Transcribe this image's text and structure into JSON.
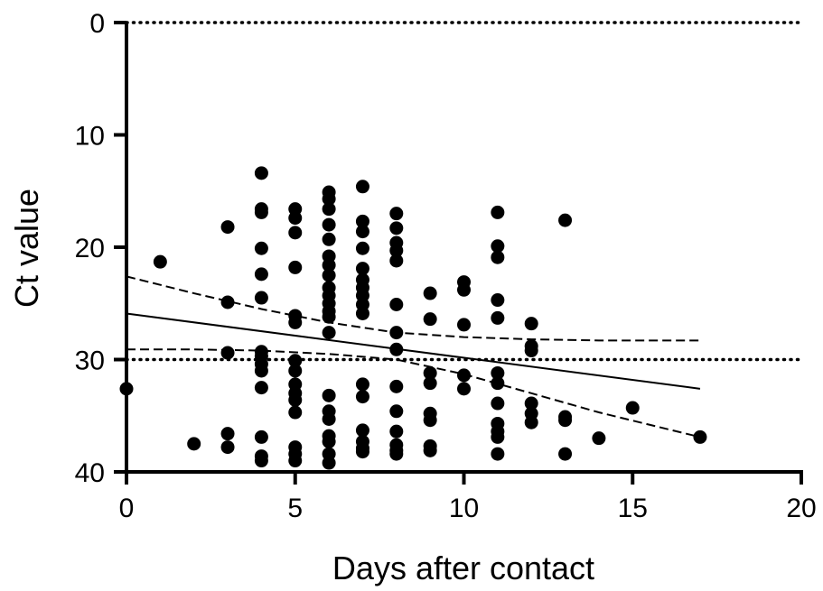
{
  "chart_data": {
    "type": "scatter",
    "title": "",
    "xlabel": "Days after contact",
    "ylabel": "Ct value",
    "xlim": [
      0,
      20
    ],
    "ylim": [
      0,
      40
    ],
    "y_axis_inverted": true,
    "grid": false,
    "legend": "none",
    "x_ticks": [
      0,
      5,
      10,
      15,
      20
    ],
    "y_ticks": [
      0,
      10,
      20,
      30,
      40
    ],
    "x_tick_labels": [
      "0",
      "5",
      "10",
      "15",
      "20"
    ],
    "y_tick_labels": [
      "0",
      "10",
      "20",
      "30",
      "40"
    ],
    "marker_color": "#000000",
    "reference_lines": [
      {
        "axis": "y",
        "value": 0,
        "style": "dotted"
      },
      {
        "axis": "y",
        "value": 30,
        "style": "dotted"
      }
    ],
    "regression_line": {
      "style": "solid",
      "x": [
        0,
        17
      ],
      "y": [
        25.9,
        32.6
      ]
    },
    "confidence_band": {
      "style": "dashed",
      "upper": {
        "x": [
          0,
          2,
          4,
          6,
          8,
          10,
          12,
          14,
          17
        ],
        "y": [
          22.6,
          24.1,
          25.5,
          26.7,
          27.6,
          28.0,
          28.2,
          28.3,
          28.3
        ]
      },
      "lower": {
        "x": [
          0,
          2,
          4,
          6,
          8,
          10,
          12,
          14,
          17
        ],
        "y": [
          29.1,
          29.1,
          29.2,
          29.5,
          30.0,
          31.3,
          33.0,
          34.7,
          36.9
        ]
      }
    },
    "series": [
      {
        "points": [
          [
            0,
            32.6
          ],
          [
            1,
            21.3
          ],
          [
            2,
            37.5
          ],
          [
            3,
            18.2
          ],
          [
            3,
            24.9
          ],
          [
            3,
            29.4
          ],
          [
            3,
            36.6
          ],
          [
            3,
            37.8
          ],
          [
            4,
            13.4
          ],
          [
            4,
            16.6
          ],
          [
            4,
            16.9
          ],
          [
            4,
            20.1
          ],
          [
            4,
            22.4
          ],
          [
            4,
            24.5
          ],
          [
            4,
            29.3
          ],
          [
            4,
            29.7
          ],
          [
            4,
            30.4
          ],
          [
            4,
            31.0
          ],
          [
            4,
            32.5
          ],
          [
            4,
            36.9
          ],
          [
            4,
            38.6
          ],
          [
            4,
            39.0
          ],
          [
            5,
            16.6
          ],
          [
            5,
            17.4
          ],
          [
            5,
            18.7
          ],
          [
            5,
            21.8
          ],
          [
            5,
            26.1
          ],
          [
            5,
            26.7
          ],
          [
            5,
            30.1
          ],
          [
            5,
            31.0
          ],
          [
            5,
            32.2
          ],
          [
            5,
            33.0
          ],
          [
            5,
            33.6
          ],
          [
            5,
            34.7
          ],
          [
            5,
            37.8
          ],
          [
            5,
            38.4
          ],
          [
            5,
            39.0
          ],
          [
            6,
            15.1
          ],
          [
            6,
            15.7
          ],
          [
            6,
            16.6
          ],
          [
            6,
            18.0
          ],
          [
            6,
            19.3
          ],
          [
            6,
            20.8
          ],
          [
            6,
            21.6
          ],
          [
            6,
            22.5
          ],
          [
            6,
            23.6
          ],
          [
            6,
            24.3
          ],
          [
            6,
            25.0
          ],
          [
            6,
            25.7
          ],
          [
            6,
            26.2
          ],
          [
            6,
            27.6
          ],
          [
            6,
            33.2
          ],
          [
            6,
            34.6
          ],
          [
            6,
            35.3
          ],
          [
            6,
            36.8
          ],
          [
            6,
            37.3
          ],
          [
            6,
            38.4
          ],
          [
            6,
            39.2
          ],
          [
            7,
            14.6
          ],
          [
            7,
            17.7
          ],
          [
            7,
            18.6
          ],
          [
            7,
            20.1
          ],
          [
            7,
            21.9
          ],
          [
            7,
            22.9
          ],
          [
            7,
            23.6
          ],
          [
            7,
            24.3
          ],
          [
            7,
            25.1
          ],
          [
            7,
            25.9
          ],
          [
            7,
            32.2
          ],
          [
            7,
            33.3
          ],
          [
            7,
            36.3
          ],
          [
            7,
            37.3
          ],
          [
            7,
            37.9
          ],
          [
            7,
            38.2
          ],
          [
            8,
            17.0
          ],
          [
            8,
            18.3
          ],
          [
            8,
            19.6
          ],
          [
            8,
            20.3
          ],
          [
            8,
            21.2
          ],
          [
            8,
            25.1
          ],
          [
            8,
            27.6
          ],
          [
            8,
            29.1
          ],
          [
            8,
            32.4
          ],
          [
            8,
            34.6
          ],
          [
            8,
            36.4
          ],
          [
            8,
            37.6
          ],
          [
            8,
            38.1
          ],
          [
            8,
            38.4
          ],
          [
            9,
            24.1
          ],
          [
            9,
            26.4
          ],
          [
            9,
            31.2
          ],
          [
            9,
            32.1
          ],
          [
            9,
            34.8
          ],
          [
            9,
            35.4
          ],
          [
            9,
            37.7
          ],
          [
            9,
            38.1
          ],
          [
            10,
            23.1
          ],
          [
            10,
            23.8
          ],
          [
            10,
            26.9
          ],
          [
            10,
            31.4
          ],
          [
            10,
            32.6
          ],
          [
            11,
            16.9
          ],
          [
            11,
            19.9
          ],
          [
            11,
            20.9
          ],
          [
            11,
            24.7
          ],
          [
            11,
            26.3
          ],
          [
            11,
            31.2
          ],
          [
            11,
            32.1
          ],
          [
            11,
            33.9
          ],
          [
            11,
            35.7
          ],
          [
            11,
            36.4
          ],
          [
            11,
            36.9
          ],
          [
            11,
            38.4
          ],
          [
            12,
            26.8
          ],
          [
            12,
            28.8
          ],
          [
            12,
            29.2
          ],
          [
            12,
            33.9
          ],
          [
            12,
            34.8
          ],
          [
            12,
            35.6
          ],
          [
            13,
            17.6
          ],
          [
            13,
            35.1
          ],
          [
            13,
            35.4
          ],
          [
            13,
            38.4
          ],
          [
            14,
            37.0
          ],
          [
            15,
            34.3
          ],
          [
            17,
            36.9
          ]
        ]
      }
    ]
  }
}
